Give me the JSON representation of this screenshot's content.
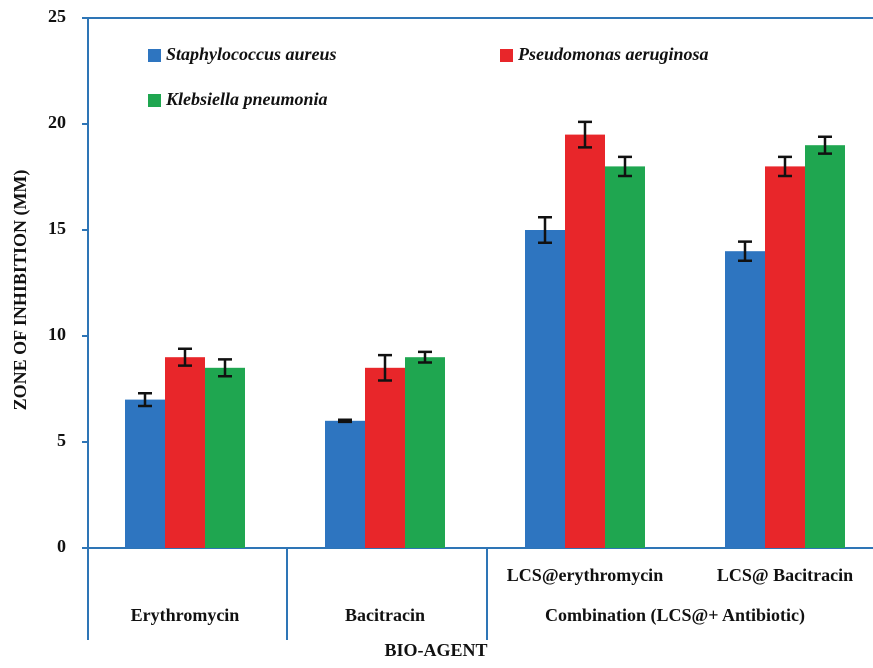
{
  "chart_data": {
    "type": "bar",
    "x_label": "BIO-AGENT",
    "y_label": "ZONE OF INHIBITION (MM)",
    "categories": [
      "Erythromycin",
      "Bacitracin",
      "LCS@erythromycin",
      "LCS@ Bacitracin"
    ],
    "x_group_label": "Combination (LCS@+ Antibiotic)",
    "series": [
      {
        "name": "Staphylococcus aureus",
        "color": "#2e75c0",
        "values": [
          7,
          6,
          15,
          14
        ],
        "errors": [
          0.3,
          0.05,
          0.6,
          0.45
        ]
      },
      {
        "name": "Pseudomonas aeruginosa",
        "color": "#e8262a",
        "values": [
          9,
          8.5,
          19.5,
          18
        ],
        "errors": [
          0.4,
          0.6,
          0.6,
          0.45
        ]
      },
      {
        "name": "Klebsiella pneumonia",
        "color": "#1fa650",
        "values": [
          8.5,
          9,
          18,
          19
        ],
        "errors": [
          0.4,
          0.25,
          0.45,
          0.4
        ]
      }
    ],
    "ylim": [
      0,
      25
    ],
    "yticks": [
      0,
      5,
      10,
      15,
      20,
      25
    ],
    "legend": "upper left"
  }
}
